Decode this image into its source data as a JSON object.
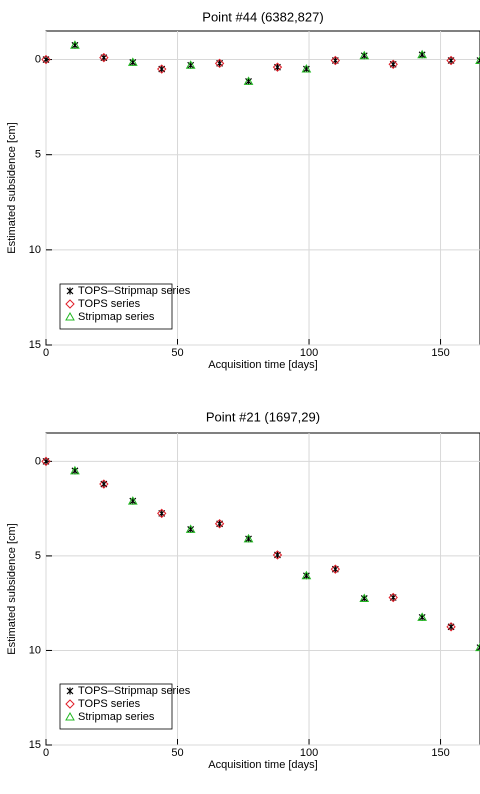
{
  "chart_data": [
    {
      "type": "scatter",
      "title": "Point #44 (6382,827)",
      "x_label": "Acquisition time [days]",
      "y_label": "Estimated subsidence [cm]",
      "xlim": [
        0,
        165
      ],
      "ylim": [
        15,
        -1.5
      ],
      "xticks": [
        0,
        50,
        100,
        150
      ],
      "yticks": [
        0,
        5,
        10,
        15
      ],
      "grid": true,
      "legend": "lower left",
      "series": [
        {
          "name": "TOPS–Stripmap series",
          "color": "#000000",
          "marker": "asterisk",
          "x": [
            0,
            11,
            22,
            33,
            44,
            55,
            66,
            77,
            88,
            99,
            110,
            121,
            132,
            143,
            154,
            165
          ],
          "values": [
            0,
            -0.75,
            -0.1,
            0.15,
            0.5,
            0.3,
            0.2,
            1.15,
            0.4,
            0.5,
            0.05,
            -0.2,
            0.25,
            -0.25,
            0.05,
            0.05
          ]
        },
        {
          "name": "TOPS series",
          "color": "#e0202a",
          "marker": "diamond",
          "x": [
            0,
            22,
            44,
            66,
            88,
            110,
            132,
            154
          ],
          "values": [
            0,
            -0.1,
            0.5,
            0.2,
            0.4,
            0.05,
            0.25,
            0.05
          ]
        },
        {
          "name": "Stripmap series",
          "color": "#22b822",
          "marker": "triangle",
          "x": [
            11,
            33,
            55,
            77,
            99,
            121,
            143,
            165
          ],
          "values": [
            -0.75,
            0.15,
            0.3,
            1.15,
            0.5,
            -0.2,
            -0.25,
            0.05
          ]
        }
      ]
    },
    {
      "type": "scatter",
      "title": "Point #21 (1697,29)",
      "x_label": "Acquisition time [days]",
      "y_label": "Estimated subsidence [cm]",
      "xlim": [
        0,
        165
      ],
      "ylim": [
        15,
        -1.5
      ],
      "xticks": [
        0,
        50,
        100,
        150
      ],
      "yticks": [
        0,
        5,
        10,
        15
      ],
      "grid": true,
      "legend": "lower left",
      "series": [
        {
          "name": "TOPS–Stripmap series",
          "color": "#000000",
          "marker": "asterisk",
          "x": [
            0,
            11,
            22,
            33,
            44,
            55,
            66,
            77,
            88,
            99,
            110,
            121,
            132,
            143,
            154,
            165
          ],
          "values": [
            0,
            0.5,
            1.2,
            2.1,
            2.75,
            3.6,
            3.3,
            4.1,
            4.95,
            6.05,
            5.7,
            7.25,
            7.2,
            8.25,
            8.75,
            9.85
          ]
        },
        {
          "name": "TOPS series",
          "color": "#e0202a",
          "marker": "diamond",
          "x": [
            0,
            22,
            44,
            66,
            88,
            110,
            132,
            154
          ],
          "values": [
            0,
            1.2,
            2.75,
            3.3,
            4.95,
            5.7,
            7.2,
            8.75
          ]
        },
        {
          "name": "Stripmap series",
          "color": "#22b822",
          "marker": "triangle",
          "x": [
            11,
            33,
            55,
            77,
            99,
            121,
            143,
            165
          ],
          "values": [
            0.5,
            2.1,
            3.6,
            4.1,
            6.05,
            7.25,
            8.25,
            9.85
          ]
        }
      ]
    }
  ]
}
